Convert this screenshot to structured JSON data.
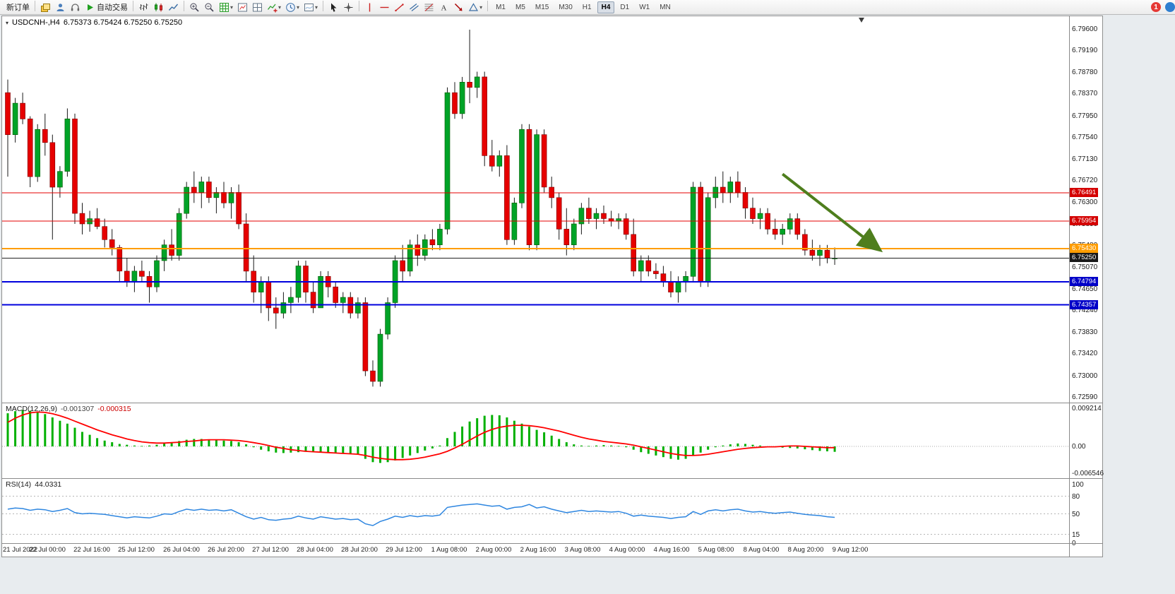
{
  "toolbar": {
    "new_order_label": "新订单",
    "autotrade_label": "自动交易",
    "timeframes": [
      "M1",
      "M5",
      "M15",
      "M30",
      "H1",
      "H4",
      "D1",
      "W1",
      "MN"
    ],
    "active_timeframe": "H4",
    "notification_count": "1",
    "items": [
      {
        "name": "new-order-button",
        "label": "新订单",
        "type": "label"
      },
      {
        "type": "sep"
      },
      {
        "name": "chart-stack-icon",
        "icon": "chart-stack"
      },
      {
        "name": "accounts-icon",
        "icon": "accounts"
      },
      {
        "name": "support-icon",
        "icon": "headset"
      },
      {
        "name": "autotrade-button",
        "icon": "play",
        "label": "自动交易"
      },
      {
        "type": "sep"
      },
      {
        "name": "bar-chart-icon",
        "icon": "bars-chart"
      },
      {
        "name": "candle-chart-icon",
        "icon": "candles-chart"
      },
      {
        "name": "line-chart-icon",
        "icon": "line-chart"
      },
      {
        "type": "sep"
      },
      {
        "name": "zoom-in-icon",
        "icon": "zoom-in"
      },
      {
        "name": "zoom-out-icon",
        "icon": "zoom-out"
      },
      {
        "name": "grid-icon",
        "icon": "grid",
        "dropdown": true
      },
      {
        "name": "tile-window-icon",
        "icon": "tile-one"
      },
      {
        "name": "tile-split-icon",
        "icon": "tile-split"
      },
      {
        "name": "add-indicator-icon",
        "icon": "indicator-add",
        "dropdown": true
      },
      {
        "name": "period-clock-icon",
        "icon": "clock",
        "dropdown": true
      },
      {
        "name": "snapshot-icon",
        "icon": "snapshot",
        "dropdown": true
      },
      {
        "type": "sep"
      },
      {
        "name": "cursor-icon",
        "icon": "cursor"
      },
      {
        "name": "crosshair-icon",
        "icon": "crosshair"
      },
      {
        "type": "sep"
      },
      {
        "name": "vertical-line-icon",
        "icon": "vline"
      },
      {
        "name": "horizontal-line-icon",
        "icon": "hline"
      },
      {
        "name": "trendline-icon",
        "icon": "trendline"
      },
      {
        "name": "channel-icon",
        "icon": "channel"
      },
      {
        "name": "fibonacci-icon",
        "icon": "fibo"
      },
      {
        "name": "text-tool-icon",
        "icon": "text-a"
      },
      {
        "name": "label-tool-icon",
        "icon": "arrow-label"
      },
      {
        "name": "shapes-icon",
        "icon": "shapes",
        "dropdown": true
      },
      {
        "type": "sep"
      }
    ]
  },
  "chart": {
    "symbol_period": "USDCNH-,H4",
    "quote_line": "6.75373 6.75424 6.75250 6.75250"
  },
  "colors": {
    "bull": "#00a327",
    "bear": "#e60000",
    "wick": "#1a1a1a",
    "macd_hist": "#00b000",
    "macd_signal": "#ff0000",
    "rsi_line": "#2e86e0",
    "arrow": "#4e7e1d"
  },
  "chart_data": {
    "type": "candlestick",
    "symbol": "USDCNH",
    "timeframe": "H4",
    "ylim": [
      6.7259,
      6.796
    ],
    "price_ticks": [
      "6.79600",
      "6.79190",
      "6.78780",
      "6.78370",
      "6.77950",
      "6.77540",
      "6.77130",
      "6.76720",
      "6.76300",
      "6.75890",
      "6.75480",
      "6.75070",
      "6.74650",
      "6.74240",
      "6.73830",
      "6.73420",
      "6.73000",
      "6.72590"
    ],
    "time_labels": [
      "21 Jul 2022",
      "22 Jul 00:00",
      "22 Jul 16:00",
      "25 Jul 12:00",
      "26 Jul 04:00",
      "26 Jul 20:00",
      "27 Jul 12:00",
      "28 Jul 04:00",
      "28 Jul 20:00",
      "29 Jul 12:00",
      "1 Aug 08:00",
      "2 Aug 00:00",
      "2 Aug 16:00",
      "3 Aug 08:00",
      "4 Aug 00:00",
      "4 Aug 16:00",
      "5 Aug 08:00",
      "8 Aug 04:00",
      "8 Aug 20:00",
      "9 Aug 12:00"
    ],
    "hlines": [
      {
        "value": 6.76491,
        "label": "6.76491",
        "color": "#e60000",
        "badge": "#d40000",
        "width": 1
      },
      {
        "value": 6.75954,
        "label": "6.75954",
        "color": "#e60000",
        "badge": "#d40000",
        "width": 1
      },
      {
        "value": 6.7543,
        "label": "6.75430",
        "color": "#ff9d00",
        "badge": "#ff9d00",
        "width": 2
      },
      {
        "value": 6.7525,
        "label": "6.75250",
        "color": "#222222",
        "badge": "#1a1a1a",
        "width": 1
      },
      {
        "value": 6.74794,
        "label": "6.74794",
        "color": "#0000dd",
        "badge": "#0000c8",
        "width": 2
      },
      {
        "value": 6.74357,
        "label": "6.74357",
        "color": "#0000dd",
        "badge": "#0000c8",
        "width": 2
      }
    ],
    "arrow_annotation": {
      "start": {
        "bar": 104,
        "price": 6.7685
      },
      "end": {
        "bar": 117,
        "price": 6.7541
      }
    },
    "ohlc": [
      [
        6.784,
        6.7865,
        6.768,
        6.776
      ],
      [
        6.776,
        6.783,
        6.7745,
        6.782
      ],
      [
        6.782,
        6.784,
        6.778,
        6.779
      ],
      [
        6.779,
        6.7795,
        6.766,
        6.768
      ],
      [
        6.768,
        6.778,
        6.767,
        6.777
      ],
      [
        6.777,
        6.78,
        6.772,
        6.7745
      ],
      [
        6.7745,
        6.776,
        6.756,
        6.766
      ],
      [
        6.766,
        6.77,
        6.764,
        6.769
      ],
      [
        6.769,
        6.781,
        6.768,
        6.779
      ],
      [
        6.779,
        6.78,
        6.759,
        6.761
      ],
      [
        6.761,
        6.763,
        6.757,
        6.759
      ],
      [
        6.759,
        6.7615,
        6.7575,
        6.76
      ],
      [
        6.76,
        6.762,
        6.758,
        6.7585
      ],
      [
        6.7585,
        6.76,
        6.7545,
        6.756
      ],
      [
        6.756,
        6.758,
        6.753,
        6.7545
      ],
      [
        6.7545,
        6.755,
        6.748,
        6.75
      ],
      [
        6.75,
        6.7525,
        6.747,
        6.748
      ],
      [
        6.748,
        6.751,
        6.746,
        6.75
      ],
      [
        6.75,
        6.752,
        6.748,
        6.749
      ],
      [
        6.749,
        6.75,
        6.744,
        6.747
      ],
      [
        6.747,
        6.753,
        6.746,
        6.752
      ],
      [
        6.752,
        6.756,
        6.75,
        6.755
      ],
      [
        6.755,
        6.758,
        6.752,
        6.753
      ],
      [
        6.753,
        6.762,
        6.752,
        6.761
      ],
      [
        6.761,
        6.767,
        6.76,
        6.766
      ],
      [
        6.766,
        6.769,
        6.763,
        6.765
      ],
      [
        6.765,
        6.768,
        6.762,
        6.767
      ],
      [
        6.767,
        6.768,
        6.763,
        6.764
      ],
      [
        6.764,
        6.766,
        6.761,
        6.765
      ],
      [
        6.765,
        6.767,
        6.762,
        6.763
      ],
      [
        6.763,
        6.766,
        6.76,
        6.765
      ],
      [
        6.765,
        6.7665,
        6.758,
        6.759
      ],
      [
        6.759,
        6.761,
        6.748,
        6.75
      ],
      [
        6.75,
        6.753,
        6.744,
        6.746
      ],
      [
        6.746,
        6.749,
        6.742,
        6.748
      ],
      [
        6.748,
        6.749,
        6.7405,
        6.743
      ],
      [
        6.743,
        6.745,
        6.739,
        6.742
      ],
      [
        6.742,
        6.746,
        6.741,
        6.744
      ],
      [
        6.744,
        6.747,
        6.742,
        6.745
      ],
      [
        6.745,
        6.752,
        6.744,
        6.751
      ],
      [
        6.751,
        6.752,
        6.744,
        6.746
      ],
      [
        6.746,
        6.748,
        6.742,
        6.743
      ],
      [
        6.743,
        6.75,
        6.743,
        6.749
      ],
      [
        6.749,
        6.75,
        6.745,
        6.747
      ],
      [
        6.747,
        6.748,
        6.743,
        6.744
      ],
      [
        6.744,
        6.746,
        6.742,
        6.745
      ],
      [
        6.745,
        6.746,
        6.741,
        6.742
      ],
      [
        6.742,
        6.745,
        6.741,
        6.744
      ],
      [
        6.744,
        6.745,
        6.73,
        6.731
      ],
      [
        6.731,
        6.733,
        6.728,
        6.729
      ],
      [
        6.729,
        6.739,
        6.728,
        6.738
      ],
      [
        6.738,
        6.745,
        6.737,
        6.744
      ],
      [
        6.744,
        6.753,
        6.743,
        6.752
      ],
      [
        6.752,
        6.755,
        6.748,
        6.75
      ],
      [
        6.75,
        6.756,
        6.749,
        6.755
      ],
      [
        6.755,
        6.757,
        6.751,
        6.753
      ],
      [
        6.753,
        6.757,
        6.752,
        6.756
      ],
      [
        6.756,
        6.758,
        6.754,
        6.755
      ],
      [
        6.755,
        6.759,
        6.754,
        6.758
      ],
      [
        6.758,
        6.785,
        6.757,
        6.784
      ],
      [
        6.784,
        6.786,
        6.779,
        6.78
      ],
      [
        6.78,
        6.787,
        6.779,
        6.786
      ],
      [
        6.786,
        6.796,
        6.782,
        6.785
      ],
      [
        6.785,
        6.788,
        6.783,
        6.787
      ],
      [
        6.787,
        6.788,
        6.77,
        6.772
      ],
      [
        6.772,
        6.775,
        6.769,
        6.77
      ],
      [
        6.77,
        6.773,
        6.768,
        6.772
      ],
      [
        6.772,
        6.774,
        6.755,
        6.756
      ],
      [
        6.756,
        6.764,
        6.755,
        6.763
      ],
      [
        6.763,
        6.778,
        6.762,
        6.777
      ],
      [
        6.777,
        6.778,
        6.754,
        6.755
      ],
      [
        6.755,
        6.777,
        6.754,
        6.776
      ],
      [
        6.776,
        6.777,
        6.765,
        6.766
      ],
      [
        6.766,
        6.768,
        6.762,
        6.764
      ],
      [
        6.764,
        6.765,
        6.756,
        6.758
      ],
      [
        6.758,
        6.762,
        6.753,
        6.755
      ],
      [
        6.755,
        6.76,
        6.754,
        6.759
      ],
      [
        6.759,
        6.763,
        6.757,
        6.762
      ],
      [
        6.762,
        6.764,
        6.759,
        6.76
      ],
      [
        6.76,
        6.762,
        6.758,
        6.761
      ],
      [
        6.761,
        6.7625,
        6.759,
        6.76
      ],
      [
        6.76,
        6.7615,
        6.7585,
        6.7595
      ],
      [
        6.7595,
        6.761,
        6.758,
        6.76
      ],
      [
        6.76,
        6.761,
        6.756,
        6.757
      ],
      [
        6.757,
        6.76,
        6.749,
        6.75
      ],
      [
        6.75,
        6.753,
        6.748,
        6.752
      ],
      [
        6.752,
        6.753,
        6.749,
        6.75
      ],
      [
        6.75,
        6.7515,
        6.7485,
        6.7495
      ],
      [
        6.7495,
        6.751,
        6.747,
        6.748
      ],
      [
        6.748,
        6.75,
        6.745,
        6.746
      ],
      [
        6.746,
        6.749,
        6.744,
        6.748
      ],
      [
        6.748,
        6.75,
        6.746,
        6.749
      ],
      [
        6.749,
        6.767,
        6.748,
        6.766
      ],
      [
        6.766,
        6.767,
        6.747,
        6.748
      ],
      [
        6.748,
        6.765,
        6.747,
        6.764
      ],
      [
        6.764,
        6.768,
        6.762,
        6.766
      ],
      [
        6.766,
        6.769,
        6.763,
        6.765
      ],
      [
        6.765,
        6.768,
        6.763,
        6.767
      ],
      [
        6.767,
        6.769,
        6.764,
        6.765
      ],
      [
        6.765,
        6.766,
        6.76,
        6.762
      ],
      [
        6.762,
        6.764,
        6.759,
        6.76
      ],
      [
        6.76,
        6.762,
        6.758,
        6.761
      ],
      [
        6.761,
        6.762,
        6.757,
        6.758
      ],
      [
        6.758,
        6.76,
        6.756,
        6.757
      ],
      [
        6.757,
        6.759,
        6.755,
        6.758
      ],
      [
        6.758,
        6.761,
        6.757,
        6.76
      ],
      [
        6.76,
        6.761,
        6.756,
        6.757
      ],
      [
        6.757,
        6.758,
        6.753,
        6.754
      ],
      [
        6.754,
        6.756,
        6.752,
        6.753
      ],
      [
        6.753,
        6.755,
        6.751,
        6.754
      ],
      [
        6.754,
        6.755,
        6.7515,
        6.7525
      ],
      [
        6.7525,
        6.7545,
        6.7512,
        6.7525
      ]
    ],
    "macd": {
      "label": "MACD(12,26,9)",
      "main_value": "-0.001307",
      "signal_value": "-0.000315",
      "axis_ticks": [
        {
          "v": 0.009214,
          "t": "0.009214"
        },
        {
          "v": 0,
          "t": "0.00"
        },
        {
          "v": -0.006546,
          "t": "-0.006546"
        }
      ],
      "hist": [
        0.008,
        0.0085,
        0.0088,
        0.0086,
        0.0082,
        0.0078,
        0.007,
        0.0062,
        0.0055,
        0.0045,
        0.0035,
        0.0028,
        0.002,
        0.0014,
        0.001,
        0.0006,
        0.0004,
        0.0002,
        0.0001,
        0.0002,
        0.0004,
        0.0008,
        0.001,
        0.0013,
        0.0016,
        0.0018,
        0.0018,
        0.0017,
        0.0016,
        0.0014,
        0.0013,
        0.001,
        0.0005,
        -0.0002,
        -0.0008,
        -0.0012,
        -0.0015,
        -0.0016,
        -0.0015,
        -0.0014,
        -0.0013,
        -0.0014,
        -0.0015,
        -0.0016,
        -0.0017,
        -0.0018,
        -0.0019,
        -0.002,
        -0.003,
        -0.0038,
        -0.004,
        -0.0038,
        -0.0034,
        -0.0028,
        -0.0022,
        -0.0016,
        -0.001,
        -0.0005,
        0.0002,
        0.002,
        0.0035,
        0.0048,
        0.006,
        0.0068,
        0.0074,
        0.0076,
        0.0075,
        0.007,
        0.0062,
        0.0055,
        0.0048,
        0.004,
        0.0034,
        0.0026,
        0.0018,
        0.001,
        0.0005,
        0.0002,
        0.0001,
        0.0002,
        0.0003,
        0.0002,
        0.0001,
        -0.0002,
        -0.0008,
        -0.0014,
        -0.0018,
        -0.0022,
        -0.0026,
        -0.003,
        -0.0032,
        -0.003,
        -0.0022,
        -0.0015,
        -0.0008,
        -0.0002,
        0.0002,
        0.0005,
        0.0007,
        0.0006,
        0.0004,
        0.0002,
        0.0,
        -0.0002,
        -0.0003,
        -0.0004,
        -0.0005,
        -0.0007,
        -0.0009,
        -0.0011,
        -0.0012,
        -0.00131
      ],
      "signal": [
        0.0058,
        0.0068,
        0.0076,
        0.0081,
        0.0083,
        0.0082,
        0.0079,
        0.0074,
        0.0068,
        0.0061,
        0.0054,
        0.0047,
        0.004,
        0.0034,
        0.0028,
        0.0023,
        0.0018,
        0.0014,
        0.0011,
        0.0009,
        0.0008,
        0.0008,
        0.0009,
        0.001,
        0.0012,
        0.0013,
        0.0015,
        0.0016,
        0.0016,
        0.0016,
        0.0015,
        0.0014,
        0.0012,
        0.0009,
        0.0006,
        0.0002,
        -0.0002,
        -0.0005,
        -0.0008,
        -0.001,
        -0.0012,
        -0.0013,
        -0.0014,
        -0.0015,
        -0.0016,
        -0.0017,
        -0.0018,
        -0.0019,
        -0.0022,
        -0.0026,
        -0.0029,
        -0.0031,
        -0.0032,
        -0.0032,
        -0.0031,
        -0.0029,
        -0.0026,
        -0.0022,
        -0.0018,
        -0.0012,
        -0.0004,
        0.0005,
        0.0015,
        0.0025,
        0.0034,
        0.0041,
        0.0046,
        0.0049,
        0.0051,
        0.0051,
        0.005,
        0.0048,
        0.0045,
        0.0041,
        0.0037,
        0.0032,
        0.0027,
        0.0022,
        0.0018,
        0.0015,
        0.0012,
        0.001,
        0.0008,
        0.0006,
        0.0003,
        -0.0001,
        -0.0005,
        -0.0009,
        -0.0013,
        -0.0017,
        -0.002,
        -0.0022,
        -0.0022,
        -0.0021,
        -0.0019,
        -0.0016,
        -0.0013,
        -0.001,
        -0.0007,
        -0.0005,
        -0.0003,
        -0.0002,
        -0.0001,
        -0.0001,
        0.0,
        0.0001,
        0.0001,
        0.0,
        -0.0001,
        -0.0002,
        -0.0003,
        -0.000315
      ]
    },
    "rsi": {
      "label": "RSI(14)",
      "value": "44.0331",
      "levels": [
        80,
        50,
        15
      ],
      "axis_ticks": [
        {
          "v": 100,
          "t": "100"
        },
        {
          "v": 80,
          "t": "80"
        },
        {
          "v": 50,
          "t": "50"
        },
        {
          "v": 15,
          "t": "15"
        },
        {
          "v": 0,
          "t": "0"
        }
      ],
      "values": [
        58,
        60,
        59,
        56,
        58,
        57,
        54,
        56,
        59,
        52,
        50,
        51,
        50,
        49,
        47,
        45,
        43,
        45,
        44,
        43,
        46,
        50,
        49,
        54,
        58,
        56,
        58,
        56,
        57,
        55,
        57,
        51,
        45,
        41,
        44,
        40,
        39,
        41,
        42,
        46,
        43,
        41,
        45,
        43,
        41,
        42,
        40,
        41,
        33,
        30,
        37,
        41,
        46,
        44,
        47,
        45,
        47,
        46,
        48,
        61,
        63,
        65,
        66,
        67,
        65,
        63,
        64,
        58,
        61,
        62,
        66,
        60,
        62,
        58,
        55,
        52,
        54,
        56,
        54,
        55,
        54,
        53,
        54,
        51,
        46,
        48,
        46,
        45,
        44,
        42,
        44,
        45,
        54,
        49,
        55,
        57,
        55,
        57,
        58,
        55,
        53,
        54,
        52,
        51,
        52,
        53,
        51,
        49,
        48,
        47,
        45,
        44.03
      ]
    }
  }
}
